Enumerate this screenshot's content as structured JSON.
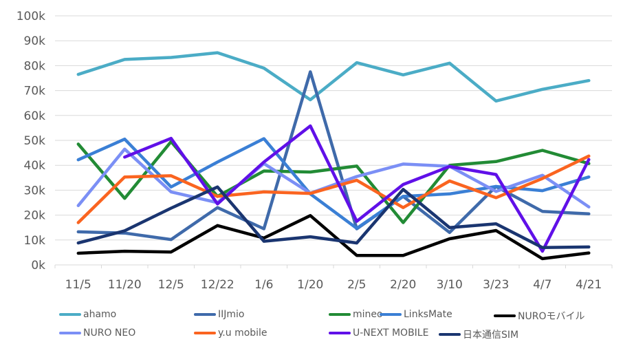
{
  "chart_data": {
    "type": "line",
    "title": "",
    "xlabel": "",
    "ylabel": "",
    "ylim": [
      0,
      100000
    ],
    "yticks": [
      "0k",
      "10k",
      "20k",
      "30k",
      "40k",
      "50k",
      "60k",
      "70k",
      "80k",
      "90k",
      "100k"
    ],
    "grid": true,
    "legend_position": "bottom",
    "categories": [
      "11/5",
      "11/20",
      "12/5",
      "12/22",
      "1/6",
      "1/20",
      "2/5",
      "2/20",
      "3/10",
      "3/23",
      "4/7",
      "4/21"
    ],
    "series": [
      {
        "name": "ahamo",
        "color": "#4bacc6",
        "values": [
          76500,
          82500,
          83300,
          85200,
          79000,
          66300,
          81200,
          76300,
          81000,
          65800,
          70500,
          74000
        ]
      },
      {
        "name": "IIJmio",
        "color": "#3f6aaa",
        "values": [
          13300,
          12800,
          10200,
          23000,
          14500,
          77500,
          14500,
          27500,
          13000,
          31500,
          21500,
          20500
        ]
      },
      {
        "name": "mineo",
        "color": "#228b35",
        "values": [
          48500,
          26700,
          49500,
          27500,
          37700,
          37300,
          39700,
          17000,
          40000,
          41500,
          46000,
          40700
        ]
      },
      {
        "name": "LinksMate",
        "color": "#3a7fd5",
        "values": [
          42200,
          50500,
          31300,
          41300,
          50700,
          28500,
          14700,
          27500,
          28500,
          31500,
          29800,
          35300
        ]
      },
      {
        "name": "NUROモバイル",
        "color": "#000000",
        "values": [
          4700,
          5500,
          5200,
          15800,
          10800,
          19800,
          3800,
          3800,
          10500,
          13800,
          2500,
          4800
        ]
      },
      {
        "name": "NURO NEO",
        "color": "#7b8ff5",
        "values": [
          23800,
          46500,
          29300,
          25000,
          40700,
          28800,
          35500,
          40500,
          39600,
          29500,
          36000,
          23300
        ]
      },
      {
        "name": "y.u mobile",
        "color": "#fa6420",
        "values": [
          17000,
          35300,
          35800,
          27500,
          29300,
          28700,
          34000,
          23000,
          33700,
          27000,
          34700,
          43700
        ]
      },
      {
        "name": "U-NEXT MOBILE",
        "color": "#6010e8",
        "values": [
          null,
          43300,
          50800,
          24500,
          41300,
          55800,
          17500,
          32300,
          39500,
          36300,
          5500,
          42300
        ]
      },
      {
        "name": "日本通信SIM",
        "color": "#1a3570",
        "values": [
          8800,
          13700,
          22800,
          31300,
          9500,
          11300,
          8800,
          30300,
          15000,
          16500,
          7000,
          7200
        ]
      }
    ]
  }
}
